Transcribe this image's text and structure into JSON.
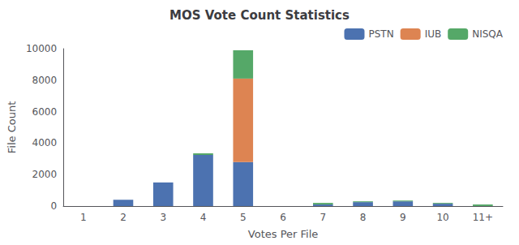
{
  "chart_data": {
    "type": "bar",
    "title": "MOS Vote Count Statistics",
    "xlabel": "Votes Per File",
    "ylabel": "File Count",
    "categories": [
      "1",
      "2",
      "3",
      "4",
      "5",
      "6",
      "7",
      "8",
      "9",
      "10",
      "11+"
    ],
    "series": [
      {
        "name": "PSTN",
        "color": "#4c72b0",
        "values": [
          0,
          400,
          1500,
          3250,
          2800,
          0,
          100,
          250,
          300,
          150,
          0
        ]
      },
      {
        "name": "IUB",
        "color": "#dd8452",
        "values": [
          0,
          0,
          0,
          0,
          5300,
          0,
          0,
          0,
          0,
          0,
          0
        ]
      },
      {
        "name": "NISQA",
        "color": "#55a868",
        "values": [
          0,
          0,
          0,
          100,
          1800,
          0,
          100,
          50,
          50,
          50,
          100
        ]
      }
    ],
    "stacked": true,
    "ylim": [
      0,
      10000
    ],
    "yticks": [
      0,
      2000,
      4000,
      6000,
      8000,
      10000
    ],
    "legend": "upper right",
    "grid": false
  }
}
